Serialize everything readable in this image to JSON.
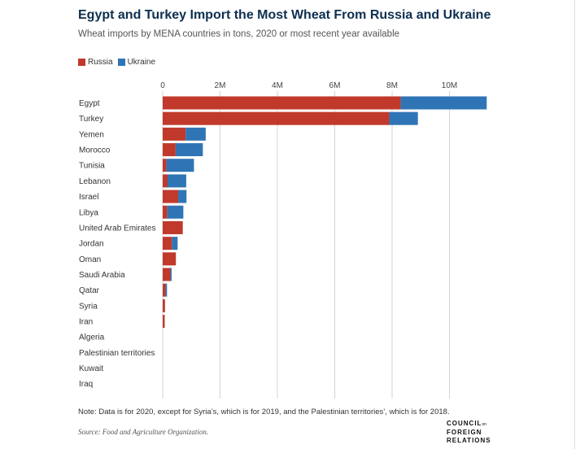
{
  "header": {
    "title": "Egypt and Turkey Import the Most Wheat From Russia and Ukraine",
    "subtitle": "Wheat imports by MENA countries in tons, 2020 or most recent year available"
  },
  "colors": {
    "russia": "#c0392b",
    "ukraine": "#2f75b5",
    "grid": "#d4d4d4"
  },
  "chart_data": {
    "type": "bar",
    "orientation": "horizontal",
    "stacked": true,
    "categories": [
      "Egypt",
      "Turkey",
      "Yemen",
      "Morocco",
      "Tunisia",
      "Lebanon",
      "Israel",
      "Libya",
      "United Arab Emirates",
      "Jordan",
      "Oman",
      "Saudi Arabia",
      "Qatar",
      "Syria",
      "Iran",
      "Algeria",
      "Palestinian territories",
      "Kuwait",
      "Iraq"
    ],
    "series": [
      {
        "name": "Russia",
        "values": [
          8300000,
          7900000,
          800000,
          450000,
          130000,
          170000,
          540000,
          160000,
          700000,
          320000,
          460000,
          270000,
          100000,
          80000,
          70000,
          0,
          0,
          0,
          0
        ]
      },
      {
        "name": "Ukraine",
        "values": [
          3000000,
          1000000,
          700000,
          950000,
          960000,
          650000,
          290000,
          560000,
          0,
          200000,
          0,
          40000,
          50000,
          0,
          0,
          0,
          0,
          0,
          0
        ]
      }
    ],
    "xticks": [
      0,
      2000000,
      4000000,
      6000000,
      8000000,
      10000000
    ],
    "xtick_labels": [
      "0",
      "2M",
      "4M",
      "6M",
      "8M",
      "10M"
    ],
    "xlim": [
      0,
      11400000
    ],
    "grid": true,
    "legend": "top-left"
  },
  "footer": {
    "note": "Note: Data is for 2020, except for Syria’s, which is for 2019, and the Palestinian territories’, which is for 2018.",
    "source": "Source: Food and Agriculture Organization.",
    "logo": [
      "COUNCIL",
      "FOREIGN",
      "RELATIONS"
    ],
    "logo_small": "on"
  }
}
